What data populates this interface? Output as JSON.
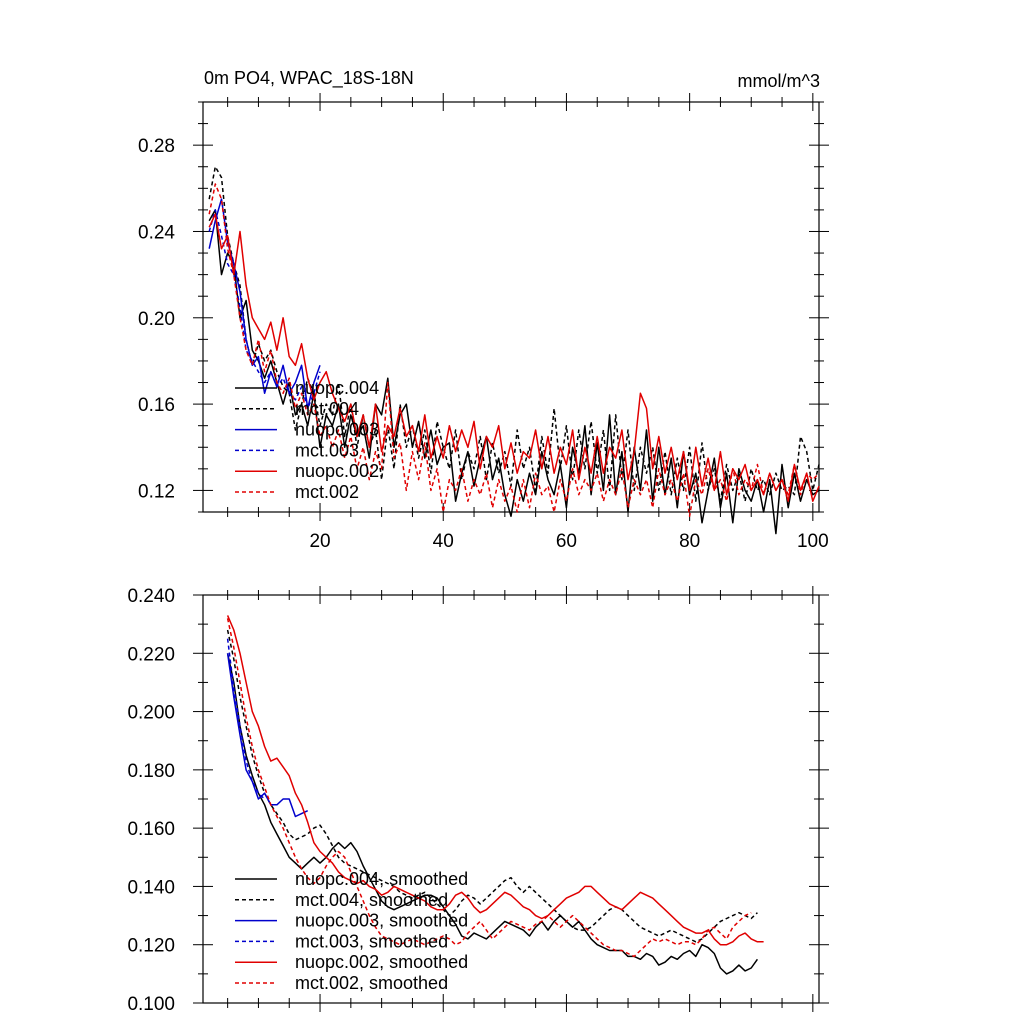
{
  "chart_data": [
    {
      "type": "line",
      "title": "0m PO4, WPAC_18S-18N",
      "units": "mmol/m^3",
      "xlabel": "",
      "ylabel": "",
      "xlim": [
        1,
        101
      ],
      "ylim": [
        0.11,
        0.3
      ],
      "xticks": [
        20,
        40,
        60,
        80,
        100
      ],
      "xtick_labels": [
        "20",
        "40",
        "60",
        "80",
        "100"
      ],
      "yticks": [
        0.12,
        0.16,
        0.2,
        0.24,
        0.28
      ],
      "ytick_labels": [
        "0.12",
        "0.16",
        "0.20",
        "0.24",
        "0.28"
      ],
      "legend_position": "lower-left",
      "series": [
        {
          "name": "nuopc.004",
          "color": "#000000",
          "dash": "solid",
          "x_start": 2,
          "values": [
            0.245,
            0.25,
            0.22,
            0.23,
            0.225,
            0.2,
            0.208,
            0.185,
            0.18,
            0.172,
            0.18,
            0.17,
            0.16,
            0.17,
            0.155,
            0.16,
            0.15,
            0.165,
            0.14,
            0.155,
            0.15,
            0.16,
            0.14,
            0.155,
            0.145,
            0.15,
            0.135,
            0.16,
            0.155,
            0.172,
            0.14,
            0.155,
            0.16,
            0.14,
            0.152,
            0.135,
            0.148,
            0.132,
            0.14,
            0.142,
            0.115,
            0.128,
            0.138,
            0.122,
            0.135,
            0.145,
            0.125,
            0.135,
            0.118,
            0.108,
            0.125,
            0.115,
            0.128,
            0.118,
            0.138,
            0.125,
            0.118,
            0.132,
            0.112,
            0.14,
            0.128,
            0.15,
            0.118,
            0.142,
            0.12,
            0.155,
            0.118,
            0.138,
            0.11,
            0.14,
            0.12,
            0.148,
            0.115,
            0.14,
            0.118,
            0.135,
            0.112,
            0.138,
            0.118,
            0.128,
            0.105,
            0.12,
            0.135,
            0.112,
            0.128,
            0.105,
            0.13,
            0.12,
            0.115,
            0.125,
            0.11,
            0.125,
            0.1,
            0.132,
            0.112,
            0.128,
            0.115,
            0.125,
            0.118,
            0.12
          ]
        },
        {
          "name": "mct.004",
          "color": "#000000",
          "dash": "dashed",
          "x_start": 2,
          "values": [
            0.255,
            0.27,
            0.265,
            0.238,
            0.225,
            0.215,
            0.19,
            0.178,
            0.188,
            0.18,
            0.185,
            0.175,
            0.168,
            0.165,
            0.148,
            0.16,
            0.172,
            0.165,
            0.15,
            0.16,
            0.155,
            0.17,
            0.145,
            0.16,
            0.14,
            0.155,
            0.14,
            0.148,
            0.125,
            0.15,
            0.13,
            0.16,
            0.14,
            0.15,
            0.135,
            0.148,
            0.128,
            0.152,
            0.14,
            0.13,
            0.148,
            0.125,
            0.138,
            0.13,
            0.145,
            0.125,
            0.142,
            0.128,
            0.138,
            0.122,
            0.148,
            0.13,
            0.14,
            0.12,
            0.145,
            0.128,
            0.158,
            0.13,
            0.15,
            0.125,
            0.148,
            0.13,
            0.152,
            0.128,
            0.148,
            0.12,
            0.155,
            0.125,
            0.148,
            0.12,
            0.14,
            0.128,
            0.14,
            0.12,
            0.138,
            0.118,
            0.135,
            0.12,
            0.14,
            0.115,
            0.142,
            0.12,
            0.13,
            0.115,
            0.132,
            0.12,
            0.128,
            0.115,
            0.13,
            0.12,
            0.125,
            0.118,
            0.128,
            0.12,
            0.122,
            0.118,
            0.145,
            0.138,
            0.12,
            0.132
          ]
        },
        {
          "name": "nuopc.003",
          "color": "#0000cc",
          "dash": "solid",
          "x_start": 2,
          "values": [
            0.232,
            0.245,
            0.255,
            0.235,
            0.225,
            0.212,
            0.19,
            0.178,
            0.182,
            0.165,
            0.175,
            0.168,
            0.178,
            0.165,
            0.17,
            0.178,
            0.158,
            0.17,
            0.178
          ]
        },
        {
          "name": "mct.003",
          "color": "#0000cc",
          "dash": "dashed",
          "x_start": 2,
          "values": [
            0.24,
            0.25,
            0.238,
            0.225,
            0.22,
            0.205,
            0.185,
            0.18,
            0.175,
            0.17,
            0.175,
            0.168,
            0.172,
            0.165,
            0.162,
            0.168,
            0.158,
            0.165,
            0.175
          ]
        },
        {
          "name": "nuopc.002",
          "color": "#e00000",
          "dash": "solid",
          "x_start": 2,
          "values": [
            0.242,
            0.248,
            0.232,
            0.238,
            0.22,
            0.24,
            0.215,
            0.2,
            0.195,
            0.19,
            0.198,
            0.185,
            0.2,
            0.182,
            0.178,
            0.188,
            0.172,
            0.162,
            0.17,
            0.175,
            0.165,
            0.158,
            0.152,
            0.16,
            0.145,
            0.155,
            0.14,
            0.16,
            0.138,
            0.15,
            0.145,
            0.158,
            0.145,
            0.15,
            0.138,
            0.155,
            0.135,
            0.145,
            0.135,
            0.15,
            0.138,
            0.148,
            0.14,
            0.152,
            0.13,
            0.145,
            0.14,
            0.15,
            0.13,
            0.142,
            0.128,
            0.138,
            0.135,
            0.148,
            0.13,
            0.145,
            0.128,
            0.14,
            0.132,
            0.148,
            0.125,
            0.14,
            0.128,
            0.145,
            0.128,
            0.14,
            0.135,
            0.148,
            0.125,
            0.138,
            0.165,
            0.158,
            0.13,
            0.145,
            0.128,
            0.14,
            0.125,
            0.138,
            0.12,
            0.14,
            0.122,
            0.135,
            0.12,
            0.138,
            0.118,
            0.13,
            0.125,
            0.132,
            0.12,
            0.125,
            0.118,
            0.128,
            0.12,
            0.125,
            0.115,
            0.132,
            0.12,
            0.128,
            0.115,
            0.122
          ]
        },
        {
          "name": "mct.002",
          "color": "#e00000",
          "dash": "dashed",
          "x_start": 2,
          "values": [
            0.248,
            0.262,
            0.255,
            0.232,
            0.22,
            0.2,
            0.185,
            0.178,
            0.19,
            0.175,
            0.185,
            0.17,
            0.165,
            0.172,
            0.158,
            0.165,
            0.155,
            0.16,
            0.145,
            0.15,
            0.14,
            0.148,
            0.135,
            0.145,
            0.13,
            0.14,
            0.125,
            0.138,
            0.13,
            0.17,
            0.135,
            0.142,
            0.12,
            0.138,
            0.125,
            0.142,
            0.12,
            0.13,
            0.11,
            0.125,
            0.12,
            0.13,
            0.115,
            0.125,
            0.118,
            0.128,
            0.112,
            0.125,
            0.115,
            0.122,
            0.11,
            0.125,
            0.112,
            0.128,
            0.118,
            0.122,
            0.11,
            0.125,
            0.115,
            0.13,
            0.118,
            0.125,
            0.12,
            0.128,
            0.115,
            0.125,
            0.118,
            0.13,
            0.112,
            0.125,
            0.118,
            0.125,
            0.112,
            0.13,
            0.118,
            0.125,
            0.115,
            0.128,
            0.108,
            0.125,
            0.118,
            0.13,
            0.12,
            0.125,
            0.115,
            0.13,
            0.118,
            0.125,
            0.12,
            0.132,
            0.118,
            0.128,
            0.12,
            0.125,
            0.118,
            0.132,
            0.118,
            0.128,
            0.125,
            0.128
          ]
        }
      ]
    },
    {
      "type": "line",
      "title": "",
      "xlabel": "",
      "ylabel": "",
      "xlim": [
        1,
        101
      ],
      "ylim": [
        0.1,
        0.24
      ],
      "xticks": [
        20,
        40,
        60,
        80,
        100
      ],
      "xtick_labels": [
        "",
        "",
        "",
        "",
        ""
      ],
      "yticks": [
        0.1,
        0.12,
        0.14,
        0.16,
        0.18,
        0.2,
        0.22,
        0.24
      ],
      "ytick_labels": [
        "0.100",
        "0.120",
        "0.140",
        "0.160",
        "0.180",
        "0.200",
        "0.220",
        "0.240"
      ],
      "legend_position": "lower-left",
      "series": [
        {
          "name": "nuopc.004, smoothed",
          "color": "#000000",
          "dash": "solid",
          "x_start": 5,
          "values": [
            0.22,
            0.21,
            0.195,
            0.185,
            0.178,
            0.172,
            0.168,
            0.162,
            0.158,
            0.154,
            0.15,
            0.148,
            0.146,
            0.148,
            0.15,
            0.148,
            0.15,
            0.153,
            0.155,
            0.153,
            0.155,
            0.152,
            0.147,
            0.143,
            0.139,
            0.135,
            0.133,
            0.132,
            0.133,
            0.134,
            0.135,
            0.136,
            0.137,
            0.137,
            0.136,
            0.133,
            0.13,
            0.127,
            0.123,
            0.122,
            0.124,
            0.123,
            0.122,
            0.124,
            0.126,
            0.128,
            0.127,
            0.126,
            0.125,
            0.123,
            0.126,
            0.128,
            0.125,
            0.128,
            0.13,
            0.128,
            0.126,
            0.128,
            0.125,
            0.122,
            0.12,
            0.119,
            0.118,
            0.118,
            0.118,
            0.116,
            0.116,
            0.115,
            0.117,
            0.116,
            0.113,
            0.114,
            0.116,
            0.115,
            0.117,
            0.118,
            0.116,
            0.12,
            0.119,
            0.117,
            0.112,
            0.11,
            0.111,
            0.113,
            0.111,
            0.112,
            0.115
          ]
        },
        {
          "name": "mct.004, smoothed",
          "color": "#000000",
          "dash": "dashed",
          "x_start": 5,
          "values": [
            0.228,
            0.218,
            0.205,
            0.195,
            0.185,
            0.178,
            0.172,
            0.168,
            0.165,
            0.162,
            0.158,
            0.156,
            0.157,
            0.158,
            0.16,
            0.161,
            0.158,
            0.154,
            0.15,
            0.148,
            0.147,
            0.146,
            0.145,
            0.144,
            0.143,
            0.142,
            0.141,
            0.14,
            0.138,
            0.137,
            0.136,
            0.137,
            0.138,
            0.136,
            0.134,
            0.132,
            0.13,
            0.132,
            0.135,
            0.137,
            0.136,
            0.134,
            0.136,
            0.138,
            0.14,
            0.142,
            0.143,
            0.14,
            0.138,
            0.14,
            0.138,
            0.136,
            0.134,
            0.132,
            0.13,
            0.128,
            0.126,
            0.125,
            0.125,
            0.126,
            0.128,
            0.13,
            0.132,
            0.133,
            0.132,
            0.13,
            0.128,
            0.126,
            0.125,
            0.124,
            0.123,
            0.124,
            0.125,
            0.124,
            0.123,
            0.122,
            0.121,
            0.122,
            0.124,
            0.126,
            0.128,
            0.129,
            0.13,
            0.131,
            0.13,
            0.129,
            0.131
          ]
        },
        {
          "name": "nuopc.003, smoothed",
          "color": "#0000cc",
          "dash": "solid",
          "x_start": 5,
          "values": [
            0.22,
            0.205,
            0.192,
            0.18,
            0.176,
            0.17,
            0.172,
            0.168,
            0.168,
            0.17,
            0.17,
            0.164,
            0.165,
            0.166
          ]
        },
        {
          "name": "mct.003, smoothed",
          "color": "#0000cc",
          "dash": "dashed",
          "x_start": 5,
          "values": [
            0.225,
            0.208,
            0.195,
            0.183,
            0.176,
            0.172,
            0.17
          ]
        },
        {
          "name": "nuopc.002, smoothed",
          "color": "#e00000",
          "dash": "solid",
          "x_start": 5,
          "values": [
            0.233,
            0.228,
            0.22,
            0.21,
            0.2,
            0.195,
            0.188,
            0.183,
            0.184,
            0.181,
            0.178,
            0.172,
            0.168,
            0.162,
            0.155,
            0.152,
            0.15,
            0.148,
            0.145,
            0.143,
            0.142,
            0.141,
            0.142,
            0.14,
            0.139,
            0.137,
            0.138,
            0.14,
            0.139,
            0.138,
            0.137,
            0.136,
            0.135,
            0.133,
            0.132,
            0.132,
            0.134,
            0.137,
            0.138,
            0.136,
            0.133,
            0.131,
            0.132,
            0.134,
            0.136,
            0.138,
            0.137,
            0.135,
            0.133,
            0.132,
            0.13,
            0.129,
            0.13,
            0.132,
            0.134,
            0.136,
            0.137,
            0.138,
            0.14,
            0.14,
            0.138,
            0.136,
            0.134,
            0.133,
            0.132,
            0.134,
            0.136,
            0.138,
            0.137,
            0.136,
            0.134,
            0.132,
            0.13,
            0.128,
            0.126,
            0.125,
            0.124,
            0.124,
            0.125,
            0.122,
            0.12,
            0.12,
            0.121,
            0.123,
            0.124,
            0.122,
            0.121,
            0.121
          ]
        },
        {
          "name": "mct.002, smoothed",
          "color": "#e00000",
          "dash": "dashed",
          "x_start": 5,
          "values": [
            0.232,
            0.222,
            0.21,
            0.198,
            0.188,
            0.18,
            0.174,
            0.168,
            0.164,
            0.16,
            0.155,
            0.15,
            0.146,
            0.143,
            0.141,
            0.143,
            0.147,
            0.15,
            0.152,
            0.15,
            0.145,
            0.14,
            0.135,
            0.13,
            0.126,
            0.123,
            0.122,
            0.121,
            0.12,
            0.121,
            0.122,
            0.121,
            0.12,
            0.121,
            0.122,
            0.123,
            0.122,
            0.12,
            0.121,
            0.124,
            0.126,
            0.128,
            0.125,
            0.122,
            0.124,
            0.126,
            0.128,
            0.127,
            0.126,
            0.125,
            0.127,
            0.128,
            0.13,
            0.128,
            0.126,
            0.128,
            0.13,
            0.128,
            0.126,
            0.124,
            0.122,
            0.12,
            0.119,
            0.118,
            0.118,
            0.117,
            0.116,
            0.118,
            0.12,
            0.122,
            0.121,
            0.122,
            0.121,
            0.12,
            0.121,
            0.121,
            0.12,
            0.122,
            0.125,
            0.126,
            0.124,
            0.122,
            0.126,
            0.128,
            0.13,
            0.131
          ]
        }
      ]
    }
  ]
}
